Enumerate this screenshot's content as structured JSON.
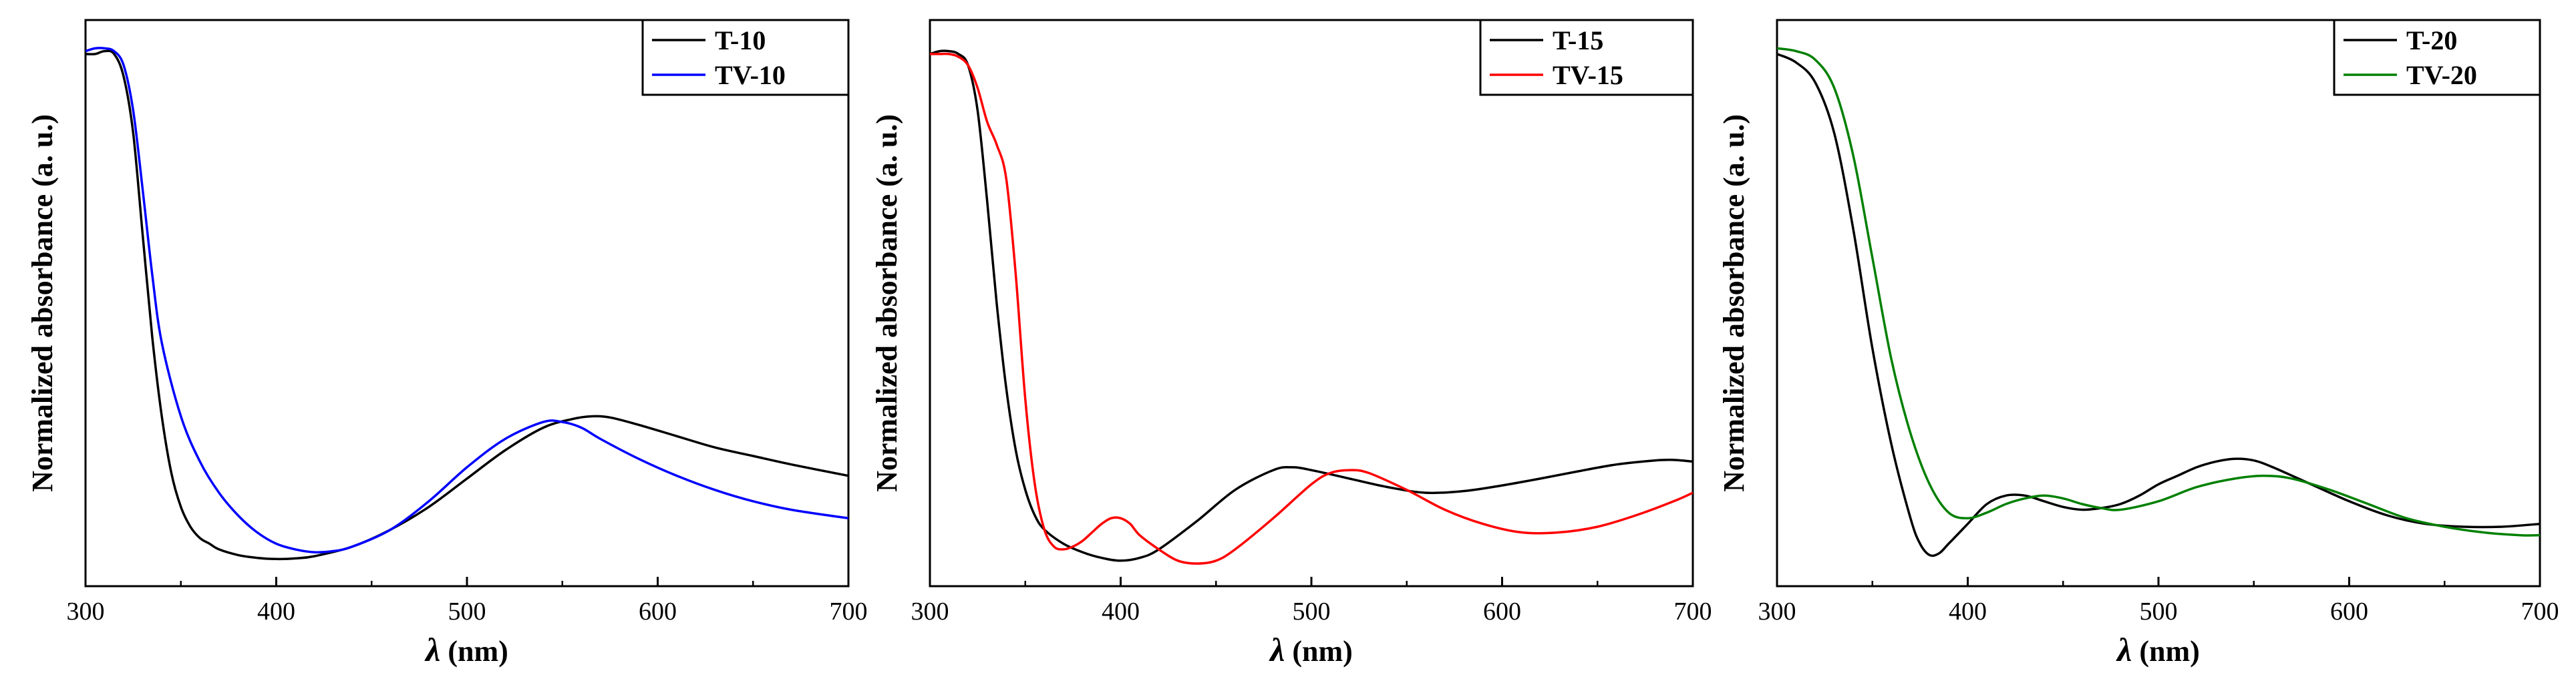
{
  "chart_data": [
    {
      "type": "line",
      "xlabel_var": "λ",
      "xlabel_unit": " (nm)",
      "ylabel": "Normalized absorbance (a. u.)",
      "xlim": [
        300,
        700
      ],
      "ylim": [
        0,
        1.0
      ],
      "xticks": [
        300,
        400,
        500,
        600,
        700
      ],
      "legend_position": "top-right",
      "grid": false,
      "series": [
        {
          "name": "T-10",
          "color": "#000000",
          "x": [
            300,
            305,
            310,
            315,
            320,
            325,
            330,
            335,
            340,
            345,
            350,
            355,
            360,
            365,
            370,
            380,
            390,
            400,
            410,
            420,
            440,
            460,
            480,
            500,
            520,
            540,
            555,
            565,
            575,
            590,
            610,
            630,
            650,
            670,
            700
          ],
          "y": [
            0.94,
            0.94,
            0.945,
            0.94,
            0.9,
            0.8,
            0.62,
            0.44,
            0.3,
            0.2,
            0.14,
            0.105,
            0.085,
            0.075,
            0.065,
            0.055,
            0.05,
            0.048,
            0.049,
            0.053,
            0.07,
            0.1,
            0.14,
            0.19,
            0.24,
            0.28,
            0.295,
            0.3,
            0.298,
            0.285,
            0.265,
            0.245,
            0.23,
            0.215,
            0.195
          ]
        },
        {
          "name": "TV-10",
          "color": "#0000ff",
          "x": [
            300,
            305,
            310,
            315,
            320,
            325,
            330,
            335,
            340,
            350,
            360,
            370,
            380,
            390,
            400,
            410,
            420,
            430,
            440,
            460,
            480,
            500,
            520,
            540,
            550,
            560,
            570,
            590,
            610,
            630,
            650,
            670,
            700
          ],
          "y": [
            0.945,
            0.95,
            0.95,
            0.945,
            0.92,
            0.84,
            0.7,
            0.55,
            0.43,
            0.3,
            0.22,
            0.165,
            0.125,
            0.095,
            0.075,
            0.065,
            0.06,
            0.062,
            0.07,
            0.1,
            0.15,
            0.21,
            0.26,
            0.29,
            0.29,
            0.28,
            0.26,
            0.225,
            0.195,
            0.17,
            0.15,
            0.135,
            0.12
          ]
        }
      ]
    },
    {
      "type": "line",
      "xlabel_var": "λ",
      "xlabel_unit": " (nm)",
      "ylabel": "Normalized absorbance (a. u.)",
      "xlim": [
        300,
        700
      ],
      "ylim": [
        0,
        1.0
      ],
      "xticks": [
        300,
        400,
        500,
        600,
        700
      ],
      "legend_position": "top-right",
      "grid": false,
      "series": [
        {
          "name": "T-15",
          "color": "#000000",
          "x": [
            300,
            305,
            310,
            315,
            320,
            325,
            330,
            335,
            340,
            345,
            350,
            355,
            360,
            370,
            380,
            390,
            400,
            410,
            420,
            440,
            460,
            480,
            490,
            500,
            520,
            540,
            560,
            580,
            600,
            620,
            640,
            660,
            680,
            690,
            700
          ],
          "y": [
            0.94,
            0.945,
            0.945,
            0.94,
            0.92,
            0.84,
            0.68,
            0.5,
            0.35,
            0.24,
            0.17,
            0.125,
            0.1,
            0.075,
            0.06,
            0.05,
            0.045,
            0.05,
            0.065,
            0.115,
            0.17,
            0.205,
            0.21,
            0.205,
            0.19,
            0.175,
            0.165,
            0.168,
            0.178,
            0.19,
            0.203,
            0.215,
            0.222,
            0.223,
            0.22
          ]
        },
        {
          "name": "TV-15",
          "color": "#ff0000",
          "x": [
            300,
            305,
            310,
            315,
            320,
            325,
            330,
            335,
            340,
            345,
            350,
            355,
            360,
            365,
            370,
            375,
            380,
            385,
            390,
            395,
            400,
            405,
            410,
            420,
            430,
            440,
            450,
            460,
            480,
            500,
            510,
            520,
            530,
            550,
            570,
            590,
            610,
            630,
            650,
            670,
            690,
            700
          ],
          "y": [
            0.94,
            0.94,
            0.94,
            0.935,
            0.92,
            0.88,
            0.82,
            0.78,
            0.72,
            0.55,
            0.33,
            0.18,
            0.1,
            0.07,
            0.065,
            0.07,
            0.08,
            0.095,
            0.11,
            0.12,
            0.12,
            0.11,
            0.09,
            0.065,
            0.045,
            0.04,
            0.045,
            0.065,
            0.12,
            0.18,
            0.2,
            0.205,
            0.2,
            0.17,
            0.135,
            0.11,
            0.095,
            0.095,
            0.105,
            0.125,
            0.15,
            0.165
          ]
        }
      ]
    },
    {
      "type": "line",
      "xlabel_var": "λ",
      "xlabel_unit": " (nm)",
      "ylabel": "Normalized absorbance (a. u.)",
      "xlim": [
        300,
        700
      ],
      "ylim": [
        0,
        1.0
      ],
      "xticks": [
        300,
        400,
        500,
        600,
        700
      ],
      "legend_position": "top-right",
      "grid": false,
      "series": [
        {
          "name": "T-20",
          "color": "#000000",
          "x": [
            300,
            310,
            320,
            330,
            340,
            350,
            360,
            370,
            375,
            380,
            385,
            390,
            400,
            410,
            420,
            430,
            440,
            450,
            460,
            470,
            480,
            490,
            500,
            510,
            520,
            530,
            540,
            550,
            560,
            580,
            600,
            620,
            640,
            660,
            680,
            700
          ],
          "y": [
            0.94,
            0.925,
            0.89,
            0.8,
            0.63,
            0.42,
            0.25,
            0.12,
            0.075,
            0.055,
            0.058,
            0.075,
            0.11,
            0.145,
            0.16,
            0.16,
            0.15,
            0.14,
            0.135,
            0.138,
            0.145,
            0.16,
            0.18,
            0.195,
            0.21,
            0.22,
            0.225,
            0.222,
            0.21,
            0.18,
            0.15,
            0.125,
            0.11,
            0.105,
            0.105,
            0.11
          ]
        },
        {
          "name": "TV-20",
          "color": "#008000",
          "x": [
            300,
            310,
            320,
            330,
            340,
            350,
            360,
            370,
            380,
            390,
            400,
            410,
            420,
            430,
            440,
            450,
            460,
            470,
            480,
            500,
            520,
            540,
            555,
            570,
            590,
            610,
            630,
            650,
            670,
            690,
            700
          ],
          "y": [
            0.95,
            0.945,
            0.93,
            0.88,
            0.76,
            0.58,
            0.4,
            0.27,
            0.18,
            0.13,
            0.12,
            0.13,
            0.145,
            0.155,
            0.16,
            0.155,
            0.145,
            0.138,
            0.135,
            0.15,
            0.175,
            0.19,
            0.195,
            0.19,
            0.17,
            0.145,
            0.12,
            0.105,
            0.095,
            0.09,
            0.09
          ]
        }
      ]
    }
  ]
}
